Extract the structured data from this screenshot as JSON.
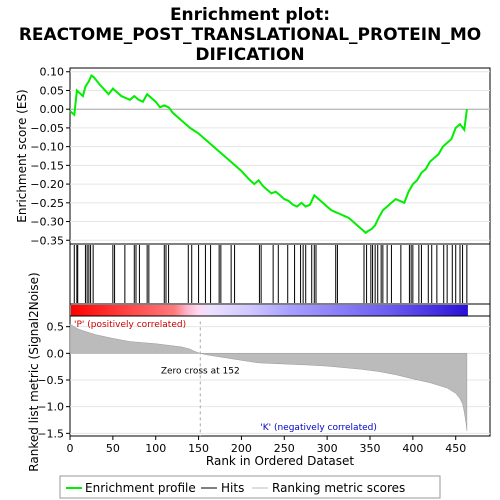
{
  "chart_data": {
    "type": "line",
    "title_line1": "Enrichment plot:",
    "title_line2": "REACTOME_POST_TRANSLATIONAL_PROTEIN_MO",
    "title_line3": "DIFICATION",
    "top_panel": {
      "ylabel": "Enrichment score (ES)",
      "ylim": [
        -0.36,
        0.11
      ],
      "yticks": [
        0.1,
        0.05,
        0.0,
        -0.05,
        -0.1,
        -0.15,
        -0.2,
        -0.25,
        -0.3,
        -0.35
      ],
      "ytick_labels": [
        "0.10",
        "0.05",
        "0.00",
        "−0.05",
        "−0.10",
        "−0.15",
        "−0.20",
        "−0.25",
        "−0.30",
        "−0.35"
      ],
      "series": [
        {
          "name": "Enrichment profile",
          "color": "#00ee00",
          "x": [
            0,
            5,
            8,
            15,
            18,
            22,
            25,
            28,
            35,
            45,
            50,
            55,
            60,
            65,
            70,
            75,
            80,
            85,
            90,
            95,
            100,
            105,
            110,
            115,
            120,
            130,
            140,
            150,
            160,
            170,
            180,
            190,
            200,
            210,
            215,
            220,
            225,
            230,
            235,
            240,
            245,
            250,
            255,
            260,
            265,
            270,
            275,
            280,
            285,
            290,
            295,
            300,
            305,
            310,
            315,
            320,
            325,
            330,
            335,
            340,
            345,
            348,
            352,
            356,
            360,
            365,
            370,
            375,
            380,
            385,
            390,
            395,
            400,
            405,
            410,
            415,
            420,
            425,
            430,
            435,
            440,
            445,
            450,
            455,
            460,
            463
          ],
          "y": [
            -0.005,
            -0.015,
            0.05,
            0.035,
            0.06,
            0.075,
            0.09,
            0.085,
            0.065,
            0.04,
            0.055,
            0.045,
            0.035,
            0.03,
            0.025,
            0.035,
            0.025,
            0.02,
            0.04,
            0.03,
            0.02,
            0.005,
            0.01,
            0.005,
            -0.01,
            -0.03,
            -0.05,
            -0.065,
            -0.085,
            -0.105,
            -0.125,
            -0.145,
            -0.165,
            -0.19,
            -0.2,
            -0.19,
            -0.205,
            -0.215,
            -0.225,
            -0.22,
            -0.23,
            -0.24,
            -0.245,
            -0.255,
            -0.26,
            -0.25,
            -0.26,
            -0.255,
            -0.23,
            -0.24,
            -0.25,
            -0.26,
            -0.27,
            -0.275,
            -0.28,
            -0.285,
            -0.29,
            -0.3,
            -0.31,
            -0.32,
            -0.33,
            -0.325,
            -0.32,
            -0.31,
            -0.29,
            -0.27,
            -0.26,
            -0.25,
            -0.24,
            -0.245,
            -0.25,
            -0.22,
            -0.2,
            -0.19,
            -0.17,
            -0.16,
            -0.14,
            -0.13,
            -0.12,
            -0.1,
            -0.09,
            -0.08,
            -0.05,
            -0.04,
            -0.055,
            0.0
          ]
        }
      ]
    },
    "hits_panel": {
      "hit_positions": [
        5,
        8,
        9,
        18,
        20,
        22,
        24,
        27,
        50,
        52,
        64,
        75,
        77,
        81,
        90,
        92,
        110,
        112,
        115,
        138,
        142,
        150,
        158,
        164,
        174,
        176,
        188,
        192,
        221,
        223,
        237,
        243,
        254,
        262,
        269,
        272,
        275,
        282,
        285,
        287,
        310,
        312,
        343,
        346,
        351,
        353,
        356,
        359,
        363,
        365,
        370,
        375,
        386,
        396,
        398,
        400,
        407,
        410,
        418,
        422,
        428,
        436,
        440,
        446,
        450,
        455,
        458,
        463
      ]
    },
    "heatmap_band": {
      "colors": [
        "#ff0000",
        "#ff3a3a",
        "#ff7a7a",
        "#ffb0c8",
        "#ffd8f0",
        "#ece0ff",
        "#d0c8ff",
        "#a8a0ff",
        "#6c5cf0",
        "#2a10d8"
      ],
      "stops": [
        0,
        0.12,
        0.26,
        0.29,
        0.32,
        0.35,
        0.45,
        0.55,
        0.8,
        1.0
      ]
    },
    "bottom_panel": {
      "ylabel": "Ranked list metric (Signal2Noise)",
      "xlabel": "Rank in Ordered Dataset",
      "ylim": [
        -1.55,
        0.7
      ],
      "yticks": [
        0.5,
        0.0,
        -0.5,
        -1.0,
        -1.5
      ],
      "ytick_labels": [
        "0.5",
        "0.0",
        "−0.5",
        "−1.0",
        "−1.5"
      ],
      "xlim": [
        0,
        490
      ],
      "xticks": [
        0,
        50,
        100,
        150,
        200,
        250,
        300,
        350,
        400,
        450
      ],
      "metric_x": [
        0,
        5,
        10,
        20,
        30,
        50,
        70,
        100,
        130,
        140,
        145,
        150,
        152,
        160,
        180,
        200,
        220,
        250,
        280,
        300,
        320,
        340,
        360,
        380,
        400,
        420,
        440,
        450,
        455,
        458,
        460,
        462,
        463
      ],
      "metric_y": [
        0.55,
        0.5,
        0.45,
        0.4,
        0.35,
        0.28,
        0.22,
        0.18,
        0.12,
        0.08,
        0.04,
        0.01,
        0.0,
        -0.03,
        -0.08,
        -0.13,
        -0.18,
        -0.2,
        -0.22,
        -0.24,
        -0.27,
        -0.3,
        -0.34,
        -0.4,
        -0.48,
        -0.55,
        -0.65,
        -0.75,
        -0.85,
        -0.95,
        -1.1,
        -1.3,
        -1.45
      ],
      "zero_cross_label": "Zero cross at 152",
      "zero_cross_rank": 152,
      "pos_label": "'P' (positively correlated)",
      "neg_label": "'K' (negatively correlated)"
    },
    "legend": {
      "items": [
        "Enrichment profile",
        "Hits",
        "Ranking metric scores"
      ],
      "colors": [
        "#00ee00",
        "#000000",
        "#bbbbbb"
      ]
    },
    "xlim": [
      0,
      490
    ]
  }
}
